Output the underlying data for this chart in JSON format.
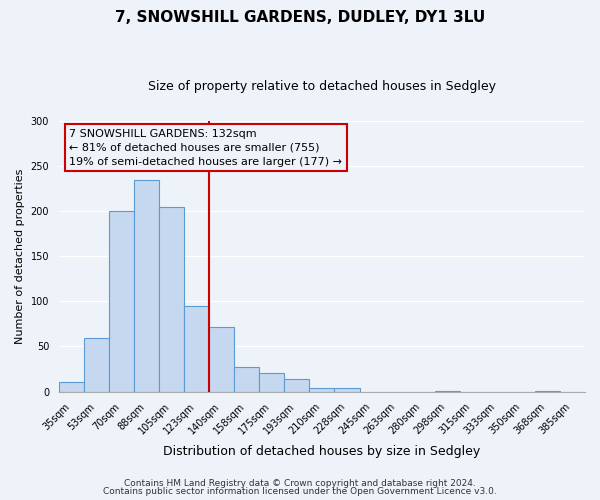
{
  "title": "7, SNOWSHILL GARDENS, DUDLEY, DY1 3LU",
  "subtitle": "Size of property relative to detached houses in Sedgley",
  "xlabel": "Distribution of detached houses by size in Sedgley",
  "ylabel": "Number of detached properties",
  "bar_labels": [
    "35sqm",
    "53sqm",
    "70sqm",
    "88sqm",
    "105sqm",
    "123sqm",
    "140sqm",
    "158sqm",
    "175sqm",
    "193sqm",
    "210sqm",
    "228sqm",
    "245sqm",
    "263sqm",
    "280sqm",
    "298sqm",
    "315sqm",
    "333sqm",
    "350sqm",
    "368sqm",
    "385sqm"
  ],
  "bar_values": [
    10,
    59,
    200,
    234,
    204,
    95,
    71,
    27,
    21,
    14,
    4,
    4,
    0,
    0,
    0,
    1,
    0,
    0,
    0,
    1,
    0
  ],
  "bar_color": "#c5d8f0",
  "bar_edge_color": "#5b9bd5",
  "ylim": [
    0,
    300
  ],
  "yticks": [
    0,
    50,
    100,
    150,
    200,
    250,
    300
  ],
  "vline_color": "#cc0000",
  "annotation_title": "7 SNOWSHILL GARDENS: 132sqm",
  "annotation_line1": "← 81% of detached houses are smaller (755)",
  "annotation_line2": "19% of semi-detached houses are larger (177) →",
  "annotation_box_color": "#cc0000",
  "footer_line1": "Contains HM Land Registry data © Crown copyright and database right 2024.",
  "footer_line2": "Contains public sector information licensed under the Open Government Licence v3.0.",
  "bg_color": "#eef2f9",
  "grid_color": "#ffffff",
  "title_fontsize": 11,
  "subtitle_fontsize": 9,
  "ylabel_fontsize": 8,
  "xlabel_fontsize": 9,
  "tick_fontsize": 7,
  "ann_fontsize": 8,
  "footer_fontsize": 6.5
}
